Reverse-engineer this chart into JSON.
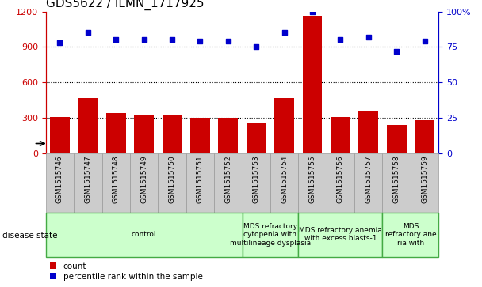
{
  "title": "GDS5622 / ILMN_1717925",
  "samples": [
    "GSM1515746",
    "GSM1515747",
    "GSM1515748",
    "GSM1515749",
    "GSM1515750",
    "GSM1515751",
    "GSM1515752",
    "GSM1515753",
    "GSM1515754",
    "GSM1515755",
    "GSM1515756",
    "GSM1515757",
    "GSM1515758",
    "GSM1515759"
  ],
  "counts": [
    310,
    470,
    340,
    320,
    320,
    305,
    305,
    260,
    470,
    1165,
    310,
    360,
    240,
    280
  ],
  "percentiles": [
    78,
    85,
    80,
    80,
    80,
    79,
    79,
    75,
    85,
    100,
    80,
    82,
    72,
    79
  ],
  "bar_color": "#cc0000",
  "dot_color": "#0000cc",
  "ylim_left": [
    0,
    1200
  ],
  "ylim_right": [
    0,
    100
  ],
  "yticks_left": [
    0,
    300,
    600,
    900,
    1200
  ],
  "yticks_right": [
    0,
    25,
    50,
    75,
    100
  ],
  "ytick_labels_right": [
    "0",
    "25",
    "50",
    "75",
    "100%"
  ],
  "group_boundaries": [
    {
      "start": 0,
      "end": 7,
      "label": "control"
    },
    {
      "start": 7,
      "end": 9,
      "label": "MDS refractory\ncytopenia with\nmultilineage dysplasia"
    },
    {
      "start": 9,
      "end": 12,
      "label": "MDS refractory anemia\nwith excess blasts-1"
    },
    {
      "start": 12,
      "end": 14,
      "label": "MDS\nrefractory ane\nria with"
    }
  ],
  "group_color": "#ccffcc",
  "group_border_color": "#44aa44",
  "xtick_box_color": "#cccccc",
  "xtick_box_border": "#999999",
  "legend_count_color": "#cc0000",
  "legend_pct_color": "#0000cc",
  "ylabel_left_color": "#cc0000",
  "ylabel_right_color": "#0000cc",
  "grid_color": "#000000",
  "background_color": "#ffffff",
  "title_fontsize": 11,
  "bar_fontsize": 6.5,
  "disease_fontsize": 6.5,
  "legend_fontsize": 7.5,
  "disease_state_label": "disease state",
  "legend_count_label": "count",
  "legend_pct_label": "percentile rank within the sample"
}
